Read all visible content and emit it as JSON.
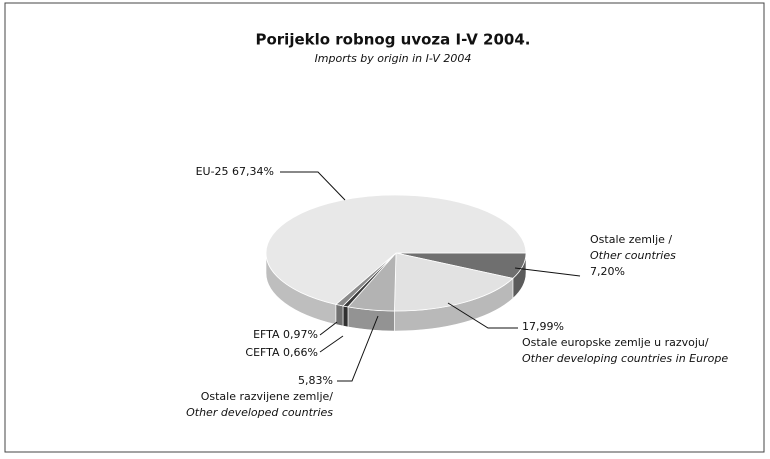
{
  "chart_data": {
    "type": "pie3d",
    "title": "Porijeklo robnog uvoza I-V 2004.",
    "subtitle": "Imports by origin in I-V 2004",
    "categories": [
      "Ostale zemlje /",
      "Ostale europske zemlje u razvoju/",
      "Ostale razvijene zemlje/",
      "CEFTA",
      "EFTA",
      "EU-25"
    ],
    "categories_en": [
      "Other countries",
      "Other developing countries in Europe",
      "Other developed countries",
      null,
      null,
      null
    ],
    "values": [
      7.2,
      17.99,
      5.83,
      0.66,
      0.97,
      67.34
    ],
    "value_labels": [
      "7,20%",
      "17,99%",
      "5,83%",
      "0,66%",
      "0,97%",
      "67,34%"
    ],
    "colors": [
      "#6f6f6f",
      "#e2e2e2",
      "#b3b3b3",
      "#3a3a3a",
      "#8a8a8a",
      "#e8e8e8"
    ]
  }
}
